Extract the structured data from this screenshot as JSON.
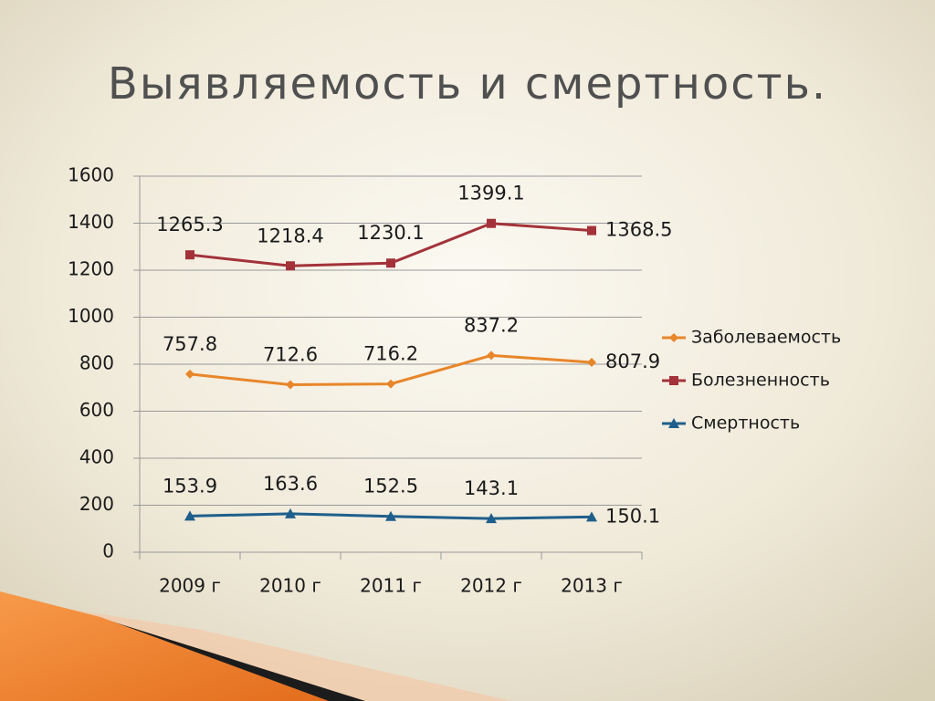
{
  "chart_data": {
    "type": "line",
    "title": "Выявляемость и смертность.",
    "categories": [
      "2009 г",
      "2010 г",
      "2011 г",
      "2012 г",
      "2013 г"
    ],
    "series": [
      {
        "name": "Заболеваемость",
        "color": "#e8862a",
        "marker": "diamond",
        "values": [
          757.8,
          712.6,
          716.2,
          837.2,
          807.9
        ]
      },
      {
        "name": "Болезненность",
        "color": "#a3323a",
        "marker": "square",
        "values": [
          1265.3,
          1218.4,
          1230.1,
          1399.1,
          1368.5
        ]
      },
      {
        "name": "Смертность",
        "color": "#1f5f8b",
        "marker": "triangle",
        "values": [
          153.9,
          163.6,
          152.5,
          143.1,
          150.1
        ]
      }
    ],
    "ylim": [
      0,
      1600
    ],
    "yticks": [
      0,
      200,
      400,
      600,
      800,
      1000,
      1200,
      1400,
      1600
    ],
    "grid": true,
    "legend": "right",
    "data_labels": true
  }
}
